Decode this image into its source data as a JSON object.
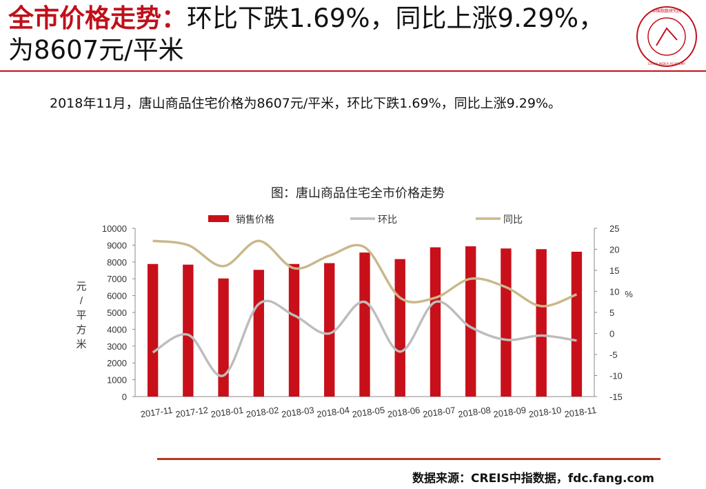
{
  "header": {
    "title_highlight": "全市价格走势：",
    "title_rest": "环比下跌1.69%，同比上涨9.29%，为8607元/平米"
  },
  "logo": {
    "icon": "china-index-academy-seal",
    "text": "中国指数研究院 CHINA INDEX ACADEMY"
  },
  "summary": "2018年11月，唐山商品住宅价格为8607元/平米，环比下跌1.69%，同比上涨9.29%。",
  "footer": {
    "source": "数据来源：CREIS中指数据，fdc.fang.com"
  },
  "colors": {
    "accent": "#c0101a",
    "bar": "#c8101a",
    "mom": "#bdbdbd",
    "yoy": "#c9b88c",
    "footer_line": "#b6371c"
  },
  "chart_data": {
    "type": "bar",
    "title": "图：唐山商品住宅全市价格走势",
    "categories": [
      "2017-11",
      "2017-12",
      "2018-01",
      "2018-02",
      "2018-03",
      "2018-04",
      "2018-05",
      "2018-06",
      "2018-07",
      "2018-08",
      "2018-09",
      "2018-10",
      "2018-11"
    ],
    "ylabel_left": "元/平方米",
    "ylabel_right": "%",
    "ylim_left": [
      0,
      10000
    ],
    "ylim_right": [
      -15,
      25
    ],
    "yticks_left": [
      "10000",
      "9000",
      "8000",
      "7000",
      "6000",
      "5000",
      "4000",
      "3000",
      "2000",
      "1000",
      "0"
    ],
    "yticks_right": [
      "25",
      "20",
      "15",
      "10",
      "5",
      "0",
      "-5",
      "-10",
      "-15"
    ],
    "legend_position": "top",
    "series": [
      {
        "name": "销售价格",
        "type": "bar",
        "axis": "left",
        "values": [
          7880,
          7840,
          7020,
          7530,
          7880,
          7930,
          8560,
          8170,
          8870,
          8930,
          8800,
          8760,
          8607
        ]
      },
      {
        "name": "环比",
        "type": "line",
        "axis": "right",
        "values": [
          -4.5,
          -0.3,
          -10,
          7,
          4.3,
          0,
          7.5,
          -4.3,
          7.5,
          1.5,
          -1.5,
          -0.5,
          -1.69
        ]
      },
      {
        "name": "同比",
        "type": "line",
        "axis": "right",
        "values": [
          22,
          21,
          16,
          22,
          15.5,
          18.5,
          20.5,
          8.5,
          8.5,
          13,
          11,
          6.5,
          9.29
        ]
      }
    ]
  }
}
